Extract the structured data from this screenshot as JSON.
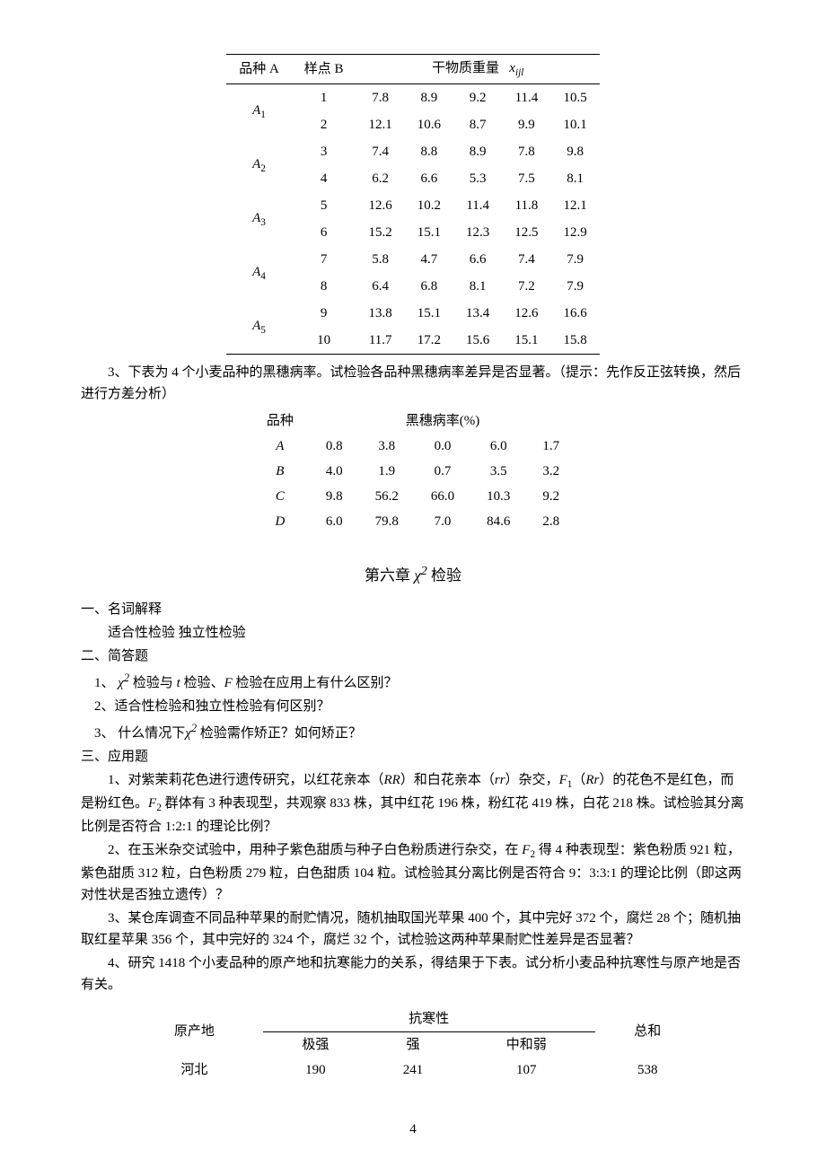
{
  "table1": {
    "header_col1": "品种 A",
    "header_col2": "样点 B",
    "header_weight": "干物质重量",
    "header_sym": "x",
    "header_sub": "ijl",
    "groups": [
      {
        "label": "A",
        "sub": "1",
        "rows": [
          {
            "b": "1",
            "v": [
              "7.8",
              "8.9",
              "9.2",
              "11.4",
              "10.5"
            ]
          },
          {
            "b": "2",
            "v": [
              "12.1",
              "10.6",
              "8.7",
              "9.9",
              "10.1"
            ]
          }
        ]
      },
      {
        "label": "A",
        "sub": "2",
        "rows": [
          {
            "b": "3",
            "v": [
              "7.4",
              "8.8",
              "8.9",
              "7.8",
              "9.8"
            ]
          },
          {
            "b": "4",
            "v": [
              "6.2",
              "6.6",
              "5.3",
              "7.5",
              "8.1"
            ]
          }
        ]
      },
      {
        "label": "A",
        "sub": "3",
        "rows": [
          {
            "b": "5",
            "v": [
              "12.6",
              "10.2",
              "11.4",
              "11.8",
              "12.1"
            ]
          },
          {
            "b": "6",
            "v": [
              "15.2",
              "15.1",
              "12.3",
              "12.5",
              "12.9"
            ]
          }
        ]
      },
      {
        "label": "A",
        "sub": "4",
        "rows": [
          {
            "b": "7",
            "v": [
              "5.8",
              "4.7",
              "6.6",
              "7.4",
              "7.9"
            ]
          },
          {
            "b": "8",
            "v": [
              "6.4",
              "6.8",
              "8.1",
              "7.2",
              "7.9"
            ]
          }
        ]
      },
      {
        "label": "A",
        "sub": "5",
        "rows": [
          {
            "b": "9",
            "v": [
              "13.8",
              "15.1",
              "13.4",
              "12.6",
              "16.6"
            ]
          },
          {
            "b": "10",
            "v": [
              "11.7",
              "17.2",
              "15.6",
              "15.1",
              "15.8"
            ]
          }
        ]
      }
    ]
  },
  "q3_text": "3、下表为 4 个小麦品种的黑穗病率。试检验各品种黑穗病率差异是否显著。（提示：先作反正弦转换，然后进行方差分析）",
  "table2": {
    "h1": "品种",
    "h2": "黑穗病率(%)",
    "rows": [
      {
        "label": "A",
        "v": [
          "0.8",
          "3.8",
          "0.0",
          "6.0",
          "1.7"
        ]
      },
      {
        "label": "B",
        "v": [
          "4.0",
          "1.9",
          "0.7",
          "3.5",
          "3.2"
        ]
      },
      {
        "label": "C",
        "v": [
          "9.8",
          "56.2",
          "66.0",
          "10.3",
          "9.2"
        ]
      },
      {
        "label": "D",
        "v": [
          "6.0",
          "79.8",
          "7.0",
          "84.6",
          "2.8"
        ]
      }
    ]
  },
  "chapter_pre": "第六章   ",
  "chapter_sym": "χ",
  "chapter_sup": "2",
  "chapter_post": " 检验",
  "sec1_title": "一、名词解释",
  "sec1_body": "适合性检验      独立性检验",
  "sec2_title": "二、简答题",
  "sec2_q1_pre": "1、 ",
  "sec2_q1_chi": "χ",
  "sec2_q1_sup": "2",
  "sec2_q1_mid": " 检验与 ",
  "sec2_q1_t": "t",
  "sec2_q1_mid2": " 检验、",
  "sec2_q1_F": "F",
  "sec2_q1_post": " 检验在应用上有什么区别？",
  "sec2_q2": "2、适合性检验和独立性检验有何区别？",
  "sec2_q3_pre": "3、  什么情况下",
  "sec2_q3_chi": "χ",
  "sec2_q3_sup": "2",
  "sec2_q3_post": " 检验需作矫正？如何矫正？",
  "sec3_title": "三、应用题",
  "app1_a": "1、对紫茉莉花色进行遗传研究，以红花亲本（",
  "app1_RR": "RR",
  "app1_b": "）和白花亲本（",
  "app1_rr": "rr",
  "app1_c": "）杂交，",
  "app1_F1": "F",
  "app1_F1sub": "1",
  "app1_d": "（",
  "app1_Rr": "Rr",
  "app1_e": "）的花色不是红色，而是粉红色。",
  "app1_F2": "F",
  "app1_F2sub": "2",
  "app1_f": " 群体有 3 种表现型，共观察 833 株，其中红花 196 株，粉红花 419 株，白花 218 株。试检验其分离比例是否符合 1:2:1 的理论比例？",
  "app2_a": "2、在玉米杂交试验中，用种子紫色甜质与种子白色粉质进行杂交，在 ",
  "app2_F2": "F",
  "app2_F2sub": "2",
  "app2_b": " 得 4 种表现型：紫色粉质 921 粒，紫色甜质 312 粒，白色粉质 279 粒，白色甜质 104 粒。试检验其分离比例是否符合 9：3:3:1 的理论比例（即这两对性状是否独立遗传）？",
  "app3": "3、某仓库调查不同品种苹果的耐贮情况，随机抽取国光苹果 400 个，其中完好 372 个，腐烂 28 个；随机抽取红星苹果 356 个，其中完好的 324 个，腐烂 32 个，试检验这两种苹果耐贮性差异是否显著？",
  "app4": "4、研究 1418 个小麦品种的原产地和抗寒能力的关系，得结果于下表。试分析小麦品种抗寒性与原产地是否有关。",
  "table3": {
    "h_origin": "原产地",
    "h_cold": "抗寒性",
    "h_total": "总和",
    "sub_cols": [
      "极强",
      "强",
      "中和弱"
    ],
    "row": {
      "label": "河北",
      "v": [
        "190",
        "241",
        "107"
      ],
      "total": "538"
    }
  },
  "pagenum": "4"
}
